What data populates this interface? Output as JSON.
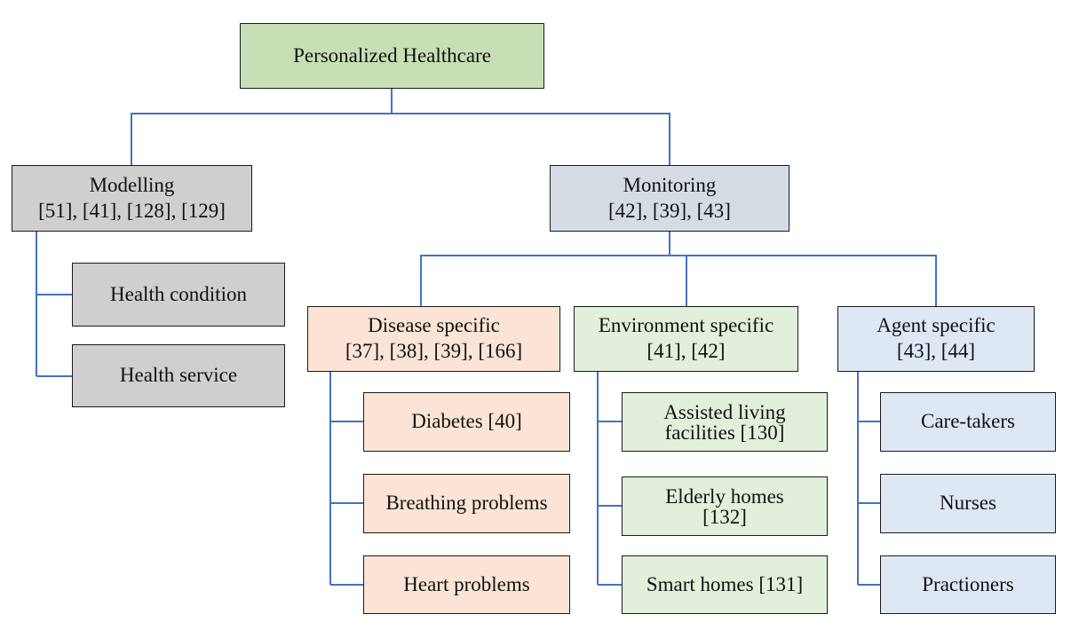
{
  "root": {
    "label": "Personalized Healthcare"
  },
  "modelling": {
    "title": "Modelling",
    "refs": "[51], [41], [128], [129]",
    "children": [
      "Health condition",
      "Health service"
    ]
  },
  "monitoring": {
    "title": "Monitoring",
    "refs": "[42], [39], [43]",
    "disease": {
      "title": "Disease specific",
      "refs": "[37], [38], [39], [166]",
      "children": [
        "Diabetes [40]",
        "Breathing problems",
        "Heart problems"
      ]
    },
    "environment": {
      "title": "Environment specific",
      "refs": "[41], [42]",
      "children": [
        {
          "line1": "Assisted living",
          "line2": "facilities [130]"
        },
        {
          "line1": "Elderly homes",
          "line2": "[132]"
        },
        {
          "line1": "Smart homes [131]"
        }
      ]
    },
    "agent": {
      "title": "Agent specific",
      "refs": "[43], [44]",
      "children": [
        "Care-takers",
        "Nurses",
        "Practioners"
      ]
    }
  },
  "colors": {
    "connector": "#4472c4",
    "root_fill": "#c7dfb4",
    "modelling_fill": "#d0cece",
    "monitoring_fill": "#d6dce4",
    "disease_fill": "#fbe4d5",
    "environment_fill": "#e2efda",
    "agent_fill": "#dde8f4"
  }
}
